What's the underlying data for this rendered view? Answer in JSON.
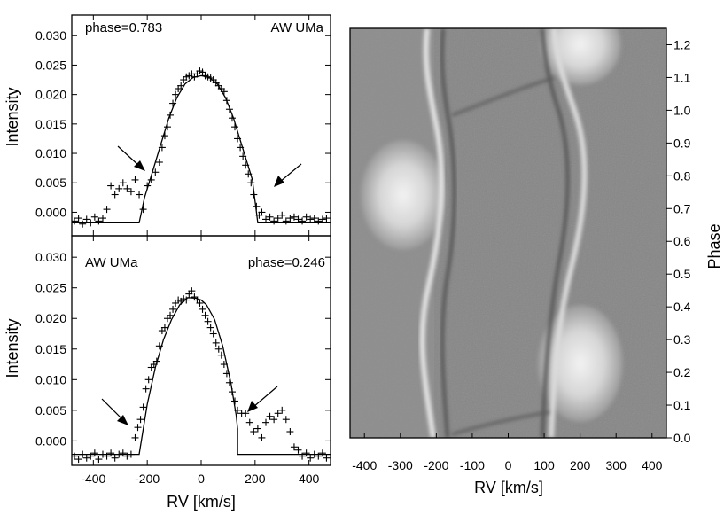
{
  "chart_data": [
    {
      "type": "scatter",
      "annotation_phase": "phase=0.783",
      "annotation_star": "AW UMa",
      "xlabel": "RV [km/s]",
      "ylabel": "Intensity",
      "xlim": [
        -480,
        480
      ],
      "ylim": [
        -0.004,
        0.0335
      ],
      "xticks": [
        -400,
        -200,
        0,
        200,
        400
      ],
      "xtick_labels": [
        "-400",
        "-200",
        "0",
        "200",
        "400"
      ],
      "xtick_labels_visible": false,
      "yticks": [
        0.0,
        0.005,
        0.01,
        0.015,
        0.02,
        0.025,
        0.03
      ],
      "ytick_labels": [
        "0.000",
        "0.005",
        "0.010",
        "0.015",
        "0.020",
        "0.025",
        "0.030"
      ],
      "series": [
        {
          "marker": "plus",
          "x": [
            -470,
            -455,
            -440,
            -425,
            -410,
            -395,
            -380,
            -365,
            -350,
            -335,
            -320,
            -305,
            -290,
            -275,
            -260,
            -245,
            -230,
            -215,
            -200,
            -185,
            -170,
            -155,
            -145,
            -135,
            -125,
            -115,
            -105,
            -95,
            -85,
            -75,
            -65,
            -55,
            -45,
            -35,
            -25,
            -15,
            -5,
            5,
            15,
            25,
            35,
            45,
            55,
            65,
            75,
            85,
            95,
            105,
            115,
            125,
            135,
            145,
            155,
            165,
            175,
            185,
            195,
            205,
            215,
            225,
            240,
            255,
            270,
            285,
            300,
            315,
            330,
            345,
            360,
            375,
            390,
            405,
            420,
            435,
            450,
            465
          ],
          "y": [
            -0.0015,
            -0.001,
            -0.002,
            -0.0012,
            -0.0018,
            -0.0008,
            -0.0015,
            -0.001,
            0.0005,
            0.0045,
            0.003,
            0.004,
            0.005,
            0.004,
            0.0035,
            0.0055,
            0.003,
            0.0005,
            0.0045,
            0.0055,
            0.0068,
            0.0085,
            0.011,
            0.013,
            0.0145,
            0.0165,
            0.0185,
            0.02,
            0.021,
            0.0215,
            0.0225,
            0.023,
            0.0232,
            0.0235,
            0.023,
            0.0235,
            0.024,
            0.0238,
            0.0232,
            0.023,
            0.0228,
            0.0225,
            0.022,
            0.0215,
            0.021,
            0.0205,
            0.019,
            0.0175,
            0.016,
            0.0145,
            0.0125,
            0.011,
            0.0095,
            0.008,
            0.0065,
            0.005,
            0.003,
            0.001,
            -0.0005,
            0.0,
            -0.0012,
            -0.0008,
            -0.0015,
            -0.001,
            -0.0005,
            -0.0015,
            -0.001,
            -0.0008,
            -0.0012,
            -0.0015,
            -0.0008,
            -0.0012,
            -0.001,
            -0.0015,
            -0.0012,
            -0.001
          ]
        },
        {
          "style": "line",
          "x": [
            -480,
            -230,
            -230,
            -210,
            -180,
            -150,
            -120,
            -90,
            -60,
            -30,
            0,
            30,
            60,
            90,
            120,
            150,
            180,
            190,
            210,
            210,
            480
          ],
          "y": [
            -0.0018,
            -0.0018,
            -0.0018,
            0.0025,
            0.007,
            0.0115,
            0.016,
            0.0195,
            0.0218,
            0.0229,
            0.0232,
            0.0229,
            0.0218,
            0.0195,
            0.016,
            0.0115,
            0.007,
            0.0055,
            -0.0018,
            -0.0018,
            -0.0018
          ]
        }
      ]
    },
    {
      "type": "scatter",
      "annotation_phase": "phase=0.246",
      "annotation_star": "AW UMa",
      "xlabel": "RV [km/s]",
      "ylabel": "Intensity",
      "xlim": [
        -480,
        480
      ],
      "ylim": [
        -0.004,
        0.0335
      ],
      "xticks": [
        -400,
        -200,
        0,
        200,
        400
      ],
      "xtick_labels": [
        "-400",
        "-200",
        "0",
        "200",
        "400"
      ],
      "yticks": [
        0.0,
        0.005,
        0.01,
        0.015,
        0.02,
        0.025,
        0.03
      ],
      "ytick_labels": [
        "0.000",
        "0.005",
        "0.010",
        "0.015",
        "0.020",
        "0.025",
        "0.030"
      ],
      "series": [
        {
          "marker": "plus",
          "x": [
            -470,
            -455,
            -440,
            -425,
            -410,
            -395,
            -380,
            -365,
            -350,
            -335,
            -320,
            -305,
            -290,
            -275,
            -260,
            -245,
            -235,
            -225,
            -215,
            -205,
            -195,
            -185,
            -175,
            -165,
            -155,
            -145,
            -135,
            -125,
            -115,
            -105,
            -95,
            -85,
            -75,
            -65,
            -55,
            -45,
            -35,
            -25,
            -15,
            -5,
            5,
            15,
            25,
            35,
            45,
            55,
            65,
            75,
            85,
            95,
            105,
            115,
            125,
            135,
            150,
            165,
            180,
            195,
            210,
            225,
            240,
            255,
            270,
            285,
            300,
            315,
            330,
            345,
            360,
            375,
            390,
            405,
            420,
            435,
            450,
            465
          ],
          "y": [
            -0.0025,
            -0.003,
            -0.0022,
            -0.0028,
            -0.0025,
            -0.002,
            -0.003,
            -0.0022,
            -0.0025,
            -0.002,
            -0.0028,
            -0.0022,
            -0.002,
            -0.0025,
            -0.0022,
            0.0005,
            0.0022,
            0.0035,
            0.0055,
            0.0085,
            0.01,
            0.012,
            0.0125,
            0.013,
            0.0155,
            0.018,
            0.0185,
            0.02,
            0.0205,
            0.0215,
            0.0225,
            0.023,
            0.0228,
            0.0232,
            0.023,
            0.024,
            0.0245,
            0.0235,
            0.023,
            0.0225,
            0.0215,
            0.0205,
            0.0195,
            0.0185,
            0.0175,
            0.016,
            0.015,
            0.014,
            0.0125,
            0.011,
            0.0095,
            0.008,
            0.0065,
            0.005,
            0.0045,
            0.0045,
            0.003,
            0.0015,
            0.002,
            0.0005,
            0.003,
            0.004,
            0.0035,
            0.0045,
            0.005,
            0.0035,
            0.0015,
            -0.001,
            -0.0015,
            -0.0025,
            -0.002,
            -0.0028,
            -0.0022,
            -0.0025,
            -0.002,
            -0.0028
          ]
        },
        {
          "style": "line",
          "x": [
            -480,
            -230,
            -230,
            -200,
            -170,
            -140,
            -110,
            -80,
            -50,
            -20,
            0,
            20,
            50,
            80,
            110,
            130,
            135,
            135,
            480
          ],
          "y": [
            -0.0022,
            -0.0022,
            -0.0022,
            0.006,
            0.012,
            0.0165,
            0.0198,
            0.0222,
            0.0234,
            0.0233,
            0.023,
            0.0222,
            0.0198,
            0.0155,
            0.0095,
            0.0042,
            0.002,
            -0.0022,
            -0.0022
          ]
        }
      ]
    },
    {
      "type": "heatmap",
      "xlabel": "RV [km/s]",
      "ylabel": "Phase",
      "xlim": [
        -440,
        440
      ],
      "ylim": [
        0.0,
        1.25
      ],
      "xticks": [
        -400,
        -300,
        -200,
        -100,
        0,
        100,
        200,
        300,
        400
      ],
      "xtick_labels": [
        "-400",
        "-300",
        "-200",
        "-100",
        "0",
        "100",
        "200",
        "300",
        "400"
      ],
      "yticks": [
        0.0,
        0.1,
        0.2,
        0.3,
        0.4,
        0.5,
        0.6,
        0.7,
        0.8,
        0.9,
        1.0,
        1.1,
        1.2
      ],
      "ytick_labels": [
        "0.0",
        "0.1",
        "0.2",
        "0.3",
        "0.4",
        "0.5",
        "0.6",
        "0.7",
        "0.8",
        "0.9",
        "1.0",
        "1.1",
        "1.2"
      ],
      "colormap": "grayscale"
    }
  ],
  "colors": {
    "background": "#ffffff",
    "axis": "#000000",
    "heatmap_mid": "#868686",
    "heatmap_bright": "#eaeaea",
    "heatmap_dark": "#5c5c5c"
  }
}
